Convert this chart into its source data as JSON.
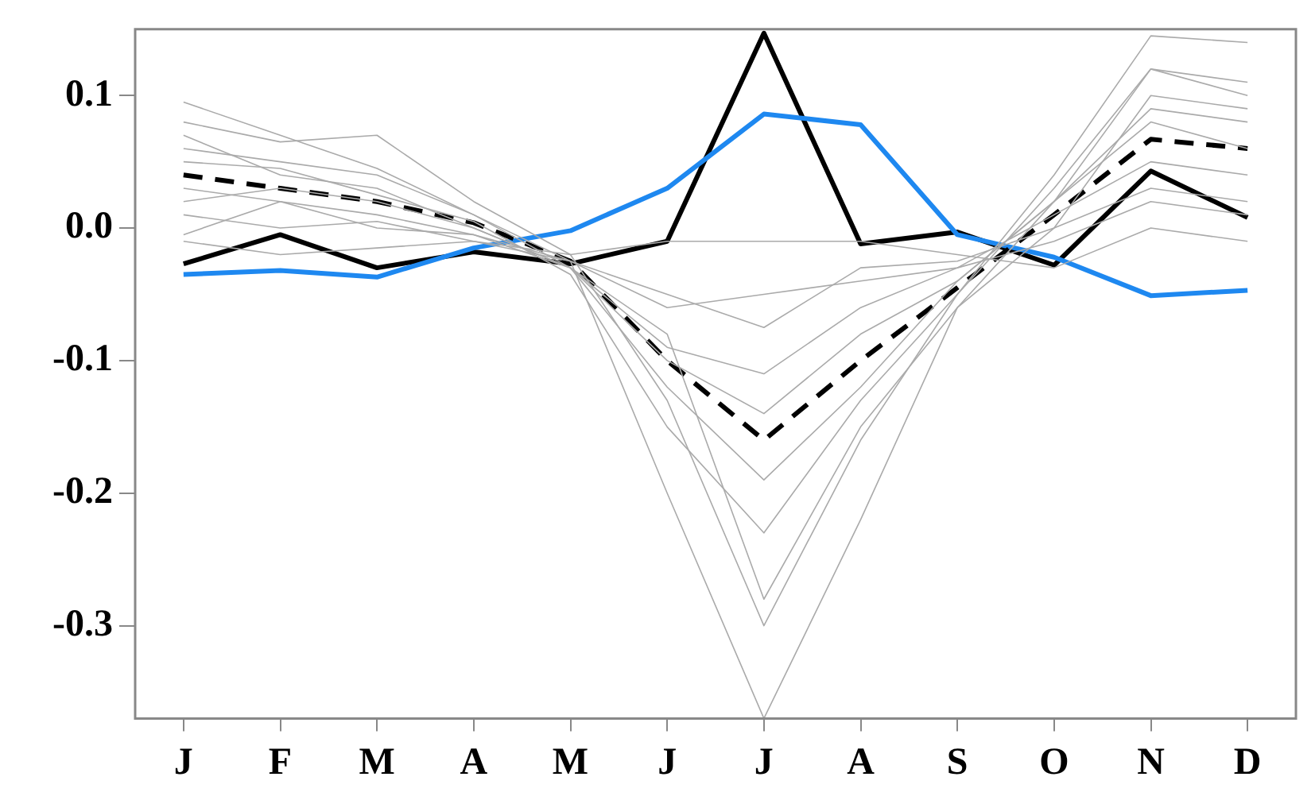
{
  "chart_data": {
    "type": "line",
    "categories": [
      "J",
      "F",
      "M",
      "A",
      "M",
      "J",
      "J",
      "A",
      "S",
      "O",
      "N",
      "D"
    ],
    "ylim": [
      -0.37,
      0.15
    ],
    "yticks": [
      {
        "value": -0.3,
        "label": "-0.3"
      },
      {
        "value": -0.2,
        "label": "-0.2"
      },
      {
        "value": -0.1,
        "label": "-0.1"
      },
      {
        "value": 0,
        "label": "0.0"
      },
      {
        "value": 0.1,
        "label": "0.1"
      }
    ],
    "grid": false,
    "legend": false,
    "marker": "none",
    "series": [
      {
        "color": "#aaaaaa",
        "line_style": "solid",
        "values": [
          0.095,
          0.07,
          0.045,
          0.01,
          -0.025,
          -0.2,
          -0.37,
          -0.22,
          -0.06,
          0.02,
          0.12,
          0.1
        ]
      },
      {
        "color": "#aaaaaa",
        "line_style": "solid",
        "values": [
          0.08,
          0.065,
          0.07,
          0.02,
          -0.02,
          -0.13,
          -0.3,
          -0.16,
          -0.05,
          0.04,
          0.145,
          0.14
        ]
      },
      {
        "color": "#aaaaaa",
        "line_style": "solid",
        "values": [
          -0.01,
          -0.02,
          -0.015,
          -0.01,
          -0.02,
          -0.01,
          -0.01,
          -0.01,
          -0.02,
          -0.03,
          0.0,
          -0.01
        ]
      },
      {
        "color": "#aaaaaa",
        "line_style": "solid",
        "values": [
          0.06,
          0.05,
          0.04,
          0.01,
          -0.03,
          -0.08,
          -0.28,
          -0.15,
          -0.06,
          0.0,
          0.1,
          0.09
        ]
      },
      {
        "color": "#aaaaaa",
        "line_style": "solid",
        "values": [
          0.03,
          0.02,
          0.01,
          -0.005,
          -0.03,
          -0.09,
          -0.11,
          -0.06,
          -0.03,
          0.01,
          0.05,
          0.04
        ]
      },
      {
        "color": "#aaaaaa",
        "line_style": "solid",
        "values": [
          0.07,
          0.04,
          0.03,
          0.0,
          -0.03,
          -0.12,
          -0.19,
          -0.12,
          -0.04,
          0.02,
          0.09,
          0.08
        ]
      },
      {
        "color": "#aaaaaa",
        "line_style": "solid",
        "values": [
          0.01,
          0.0,
          0.005,
          -0.01,
          -0.025,
          -0.06,
          -0.05,
          -0.04,
          -0.03,
          -0.01,
          0.02,
          0.01
        ]
      },
      {
        "color": "#aaaaaa",
        "line_style": "solid",
        "values": [
          0.05,
          0.045,
          0.025,
          0.005,
          -0.035,
          -0.15,
          -0.23,
          -0.13,
          -0.05,
          0.03,
          0.12,
          0.11
        ]
      },
      {
        "color": "#aaaaaa",
        "line_style": "solid",
        "values": [
          -0.005,
          0.02,
          0.0,
          -0.005,
          -0.025,
          -0.05,
          -0.075,
          -0.03,
          -0.025,
          0.0,
          0.03,
          0.02
        ]
      },
      {
        "color": "#aaaaaa",
        "line_style": "solid",
        "values": [
          0.02,
          0.03,
          0.02,
          0.0,
          -0.03,
          -0.1,
          -0.14,
          -0.08,
          -0.04,
          0.02,
          0.08,
          0.06
        ]
      },
      {
        "color": "#000000",
        "line_style": "dashed",
        "values": [
          0.04,
          0.03,
          0.02,
          0.004,
          -0.025,
          -0.1,
          -0.16,
          -0.1,
          -0.045,
          0.01,
          0.067,
          0.06
        ]
      },
      {
        "color": "#1e88f0",
        "line_style": "solid",
        "values": [
          -0.035,
          -0.032,
          -0.037,
          -0.015,
          -0.002,
          0.03,
          0.086,
          0.078,
          -0.005,
          -0.022,
          -0.051,
          -0.047
        ]
      },
      {
        "color": "#000000",
        "line_style": "solid",
        "values": [
          -0.027,
          -0.005,
          -0.03,
          -0.018,
          -0.027,
          -0.01,
          0.147,
          -0.012,
          -0.003,
          -0.028,
          0.043,
          0.008
        ]
      }
    ]
  }
}
